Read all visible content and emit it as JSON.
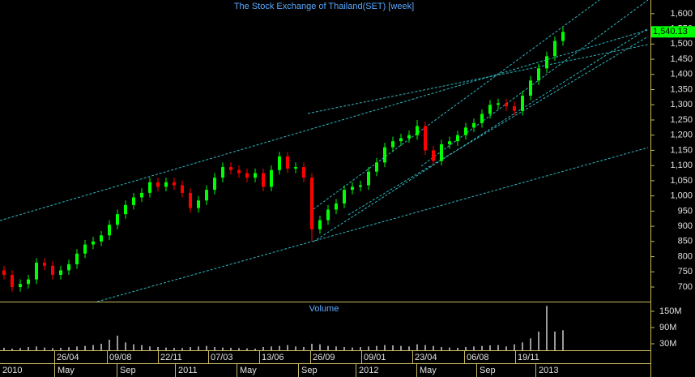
{
  "chart_data": {
    "type": "candlestick",
    "title": "The Stock Exchange of Thailand(SET) [week]",
    "up_color": "#00ff00",
    "down_color": "#ff0000",
    "open": [
      755,
      740,
      700,
      710,
      725,
      780,
      770,
      740,
      755,
      775,
      810,
      840,
      850,
      870,
      905,
      940,
      970,
      995,
      1010,
      1045,
      1030,
      1045,
      1035,
      1010,
      960,
      985,
      1020,
      1060,
      1095,
      1085,
      1075,
      1060,
      1075,
      1030,
      1085,
      1130,
      1090,
      1095,
      1060,
      890,
      920,
      955,
      975,
      1020,
      1030,
      1035,
      1080,
      1110,
      1160,
      1180,
      1190,
      1200,
      1230,
      1150,
      1115,
      1170,
      1180,
      1200,
      1225,
      1240,
      1270,
      1300,
      1305,
      1295,
      1280,
      1330,
      1380,
      1420,
      1460,
      1510
    ],
    "high": [
      770,
      755,
      725,
      740,
      795,
      795,
      785,
      770,
      790,
      825,
      855,
      865,
      885,
      920,
      955,
      985,
      1010,
      1025,
      1060,
      1060,
      1060,
      1060,
      1050,
      1025,
      1000,
      1035,
      1075,
      1110,
      1110,
      1100,
      1090,
      1090,
      1090,
      1100,
      1145,
      1145,
      1110,
      1110,
      1075,
      935,
      970,
      990,
      1035,
      1045,
      1050,
      1095,
      1125,
      1175,
      1195,
      1205,
      1215,
      1250,
      1245,
      1165,
      1185,
      1195,
      1215,
      1240,
      1255,
      1285,
      1315,
      1320,
      1320,
      1310,
      1345,
      1395,
      1435,
      1475,
      1525,
      1555
    ],
    "low": [
      725,
      685,
      685,
      695,
      710,
      755,
      725,
      725,
      740,
      760,
      795,
      825,
      835,
      855,
      890,
      925,
      955,
      980,
      995,
      1015,
      1015,
      1020,
      995,
      945,
      945,
      970,
      1005,
      1045,
      1070,
      1060,
      1045,
      1045,
      1015,
      1015,
      1070,
      1075,
      1075,
      1045,
      850,
      875,
      905,
      940,
      960,
      1005,
      1015,
      1020,
      1065,
      1095,
      1145,
      1165,
      1175,
      1185,
      1135,
      1100,
      1100,
      1155,
      1165,
      1185,
      1210,
      1225,
      1255,
      1285,
      1280,
      1265,
      1265,
      1315,
      1365,
      1405,
      1445,
      1495
    ],
    "close": [
      740,
      700,
      710,
      725,
      780,
      770,
      740,
      755,
      775,
      810,
      840,
      850,
      870,
      905,
      940,
      970,
      995,
      1010,
      1045,
      1030,
      1045,
      1035,
      1010,
      960,
      985,
      1020,
      1060,
      1095,
      1085,
      1075,
      1060,
      1075,
      1030,
      1085,
      1130,
      1090,
      1095,
      1060,
      890,
      920,
      955,
      975,
      1020,
      1030,
      1035,
      1080,
      1110,
      1160,
      1180,
      1190,
      1200,
      1230,
      1150,
      1115,
      1170,
      1180,
      1200,
      1225,
      1240,
      1270,
      1300,
      1305,
      1295,
      1280,
      1330,
      1380,
      1420,
      1460,
      1510,
      1540
    ],
    "ylim": [
      652,
      1645
    ],
    "yticks": [
      700,
      750,
      800,
      850,
      900,
      950,
      {
        "value": 1000,
        "label": "1,000"
      },
      {
        "value": 1050,
        "label": "1,050"
      },
      {
        "value": 1100,
        "label": "1,100"
      },
      {
        "value": 1150,
        "label": "1,150"
      },
      {
        "value": 1200,
        "label": "1,200"
      },
      {
        "value": 1250,
        "label": "1,250"
      },
      {
        "value": 1300,
        "label": "1,300"
      },
      {
        "value": 1350,
        "label": "1,350"
      },
      {
        "value": 1400,
        "label": "1,400"
      },
      {
        "value": 1450,
        "label": "1,450"
      },
      {
        "value": 1500,
        "label": "1,500"
      },
      {
        "value": 1550,
        "label": "1,550"
      },
      {
        "value": 1600,
        "label": "1,600"
      }
    ],
    "last_price": {
      "value": 1540.13,
      "label": "1,540.13"
    },
    "volume_title": "Volume",
    "volume": [
      15,
      12,
      14,
      18,
      20,
      16,
      14,
      15,
      17,
      20,
      22,
      25,
      30,
      45,
      60,
      35,
      28,
      25,
      20,
      18,
      16,
      15,
      14,
      18,
      20,
      22,
      18,
      16,
      15,
      14,
      13,
      12,
      18,
      20,
      22,
      25,
      20,
      18,
      30,
      28,
      22,
      20,
      18,
      16,
      18,
      20,
      22,
      25,
      24,
      22,
      20,
      28,
      25,
      22,
      18,
      16,
      15,
      18,
      20,
      22,
      24,
      25,
      20,
      28,
      35,
      50,
      75,
      170,
      75,
      80
    ],
    "volume_color": "#9a9a9a",
    "volume_ylim": [
      6,
      183
    ],
    "volume_ticks": [
      {
        "value": 30,
        "label": "30M"
      },
      {
        "value": 90,
        "label": "90M"
      },
      {
        "value": 150,
        "label": "150M"
      }
    ],
    "date_labels": [
      "26/04",
      "09/08",
      "22/11",
      "07/03",
      "13/06",
      "26/09",
      "09/01",
      "23/04",
      "06/08",
      "19/11"
    ],
    "period_labels": [
      "2010",
      "May",
      "Sep",
      "2011",
      "May",
      "Sep",
      "2012",
      "May",
      "Sep",
      "2013"
    ]
  }
}
